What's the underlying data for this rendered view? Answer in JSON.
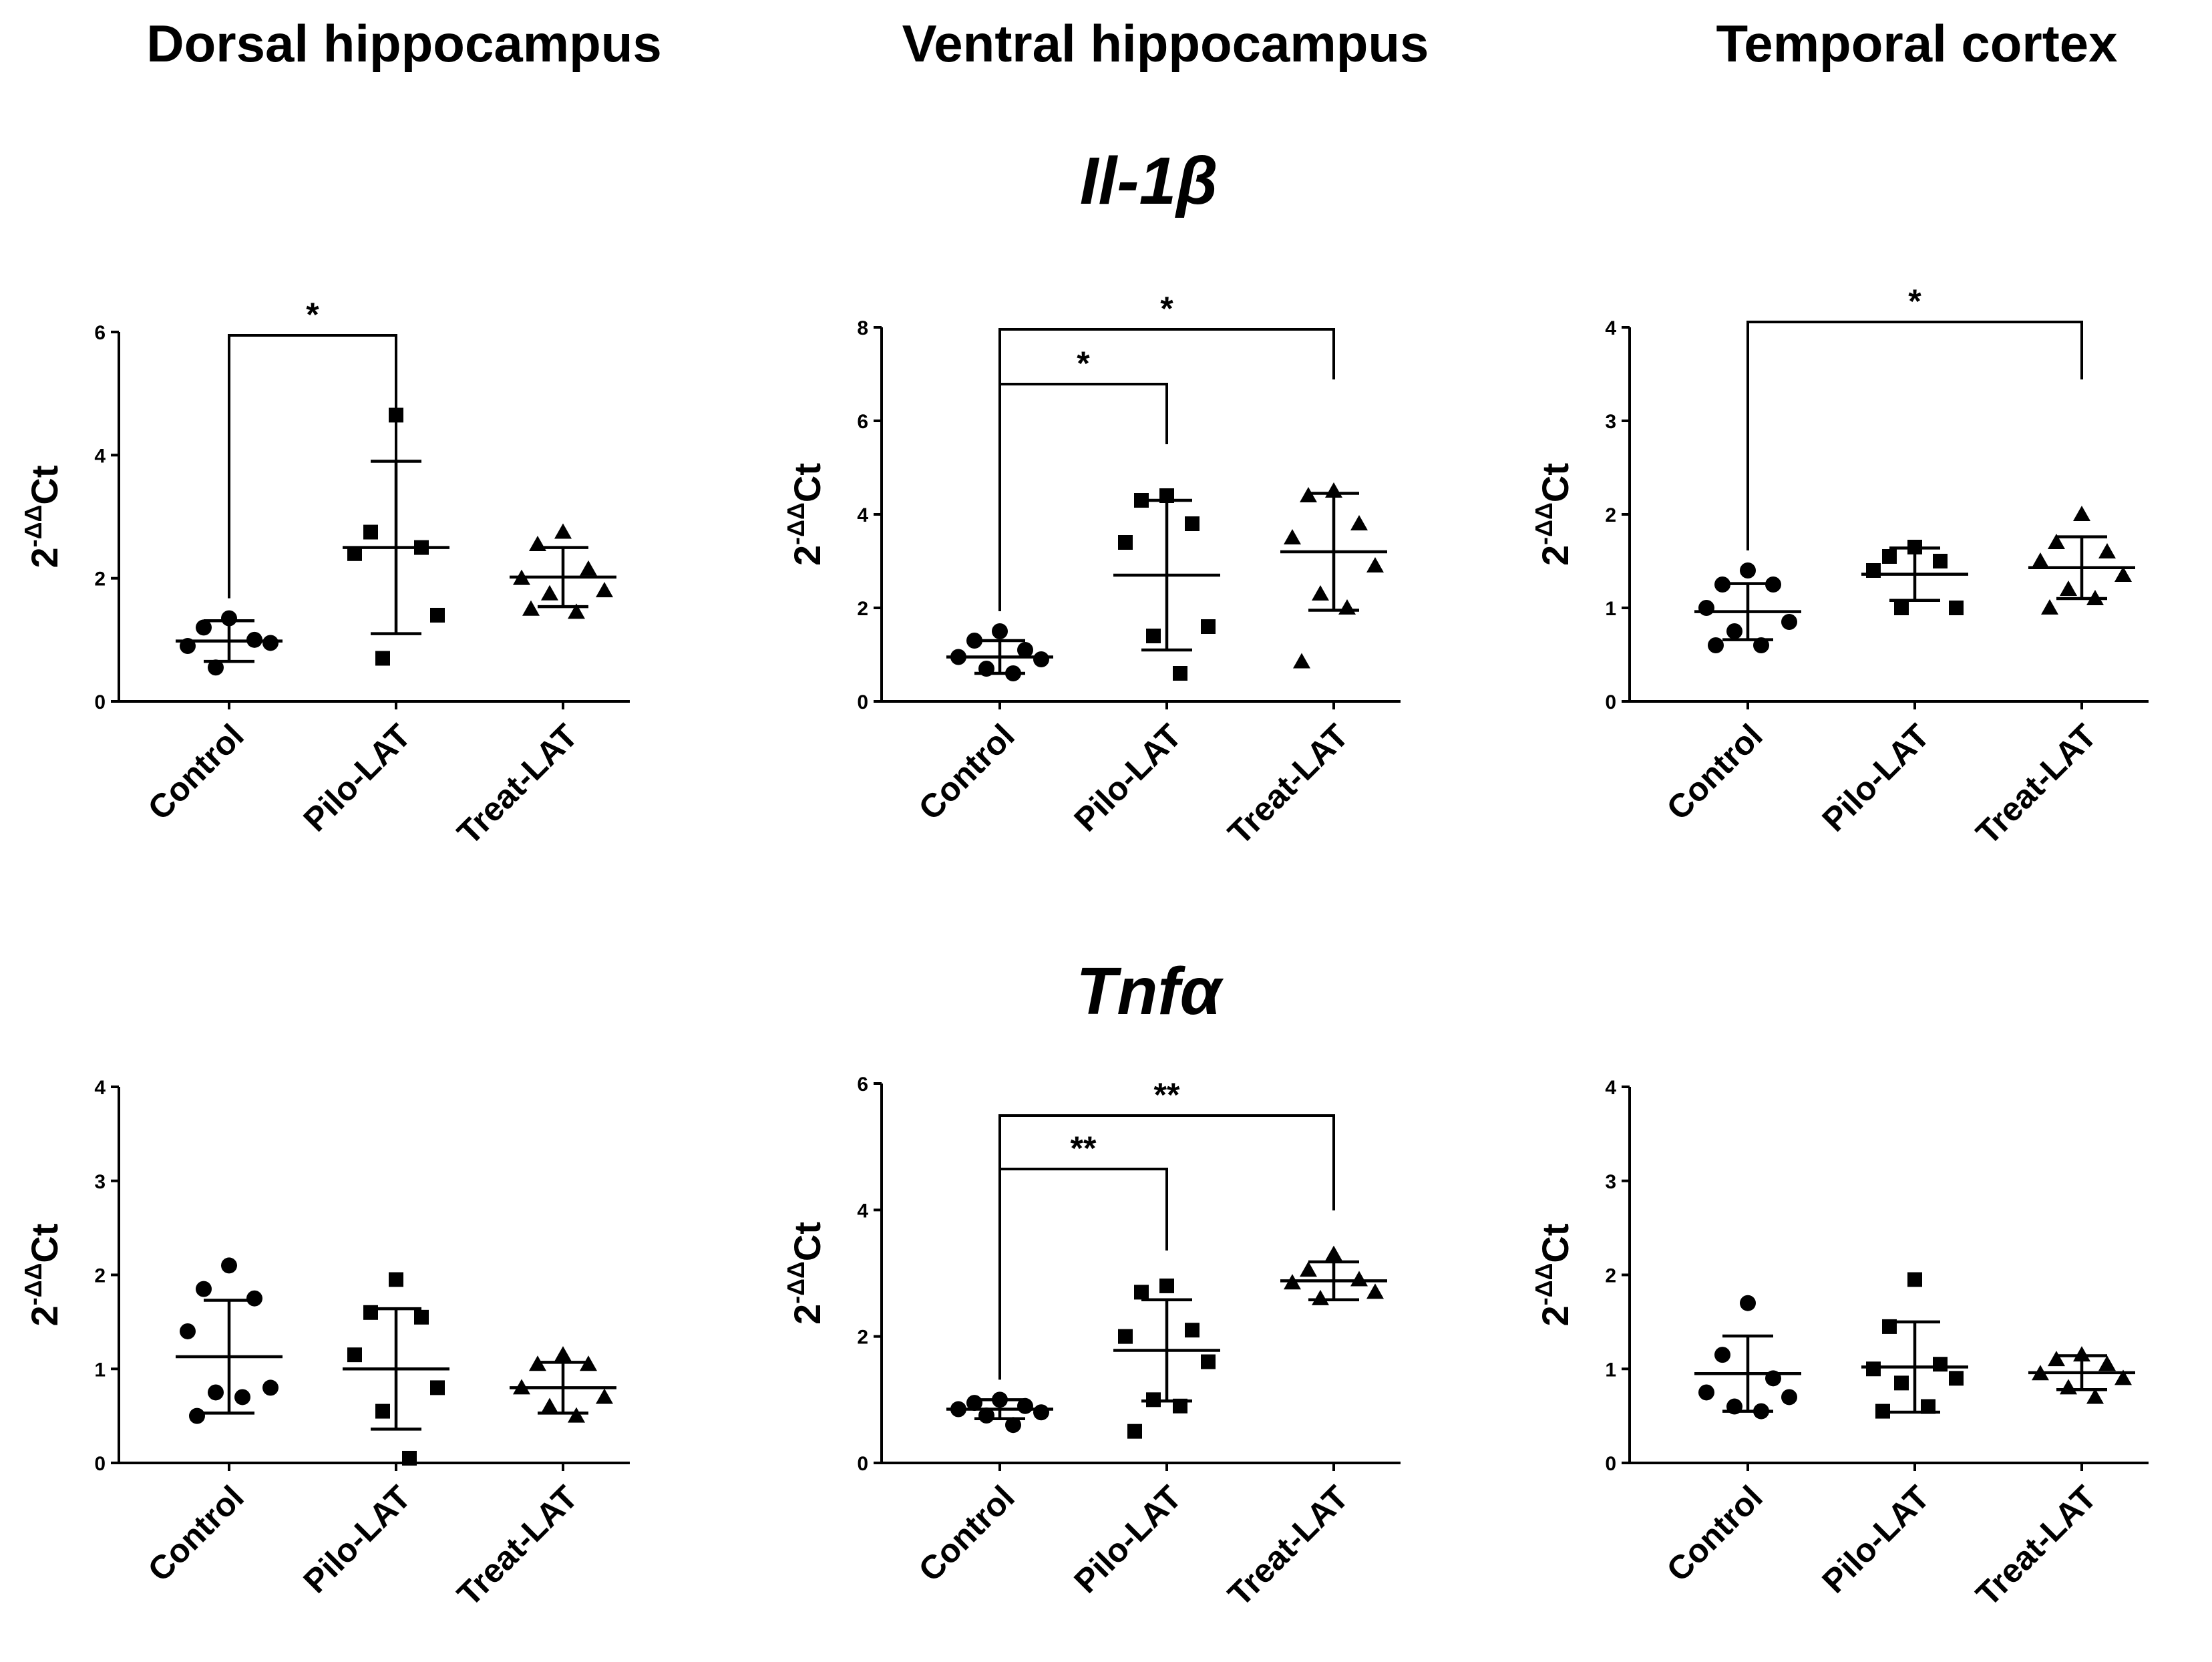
{
  "columns": [
    "Dorsal hippocampus",
    "Ventral hippocampus",
    "Temporal cortex"
  ],
  "genes": [
    {
      "title": "Il-1",
      "greek": "β"
    },
    {
      "title": "Tnf",
      "greek": "α"
    }
  ],
  "y_axis_label": {
    "base": "2",
    "exponent": "-ΔΔ",
    "suffix": "Ct"
  },
  "chart_data": [
    {
      "type": "scatter",
      "gene": "Il-1β",
      "region": "Dorsal hippocampus",
      "categories": [
        "Control",
        "Pilo-LAT",
        "Treat-LAT"
      ],
      "ylim": [
        0,
        6
      ],
      "yticks": [
        0,
        2,
        4,
        6
      ],
      "series": [
        {
          "name": "Control",
          "marker": "circle",
          "values": [
            1.35,
            1.2,
            1.0,
            0.9,
            0.95,
            0.55
          ],
          "mean": 0.98,
          "sd": 0.33
        },
        {
          "name": "Pilo-LAT",
          "marker": "square",
          "values": [
            4.65,
            2.75,
            2.5,
            2.4,
            1.4,
            0.7
          ],
          "mean": 2.5,
          "sd": 1.4
        },
        {
          "name": "Treat-LAT",
          "marker": "triangle",
          "values": [
            2.75,
            2.55,
            2.15,
            2.0,
            1.8,
            1.75,
            1.45,
            1.5
          ],
          "mean": 2.02,
          "sd": 0.48
        }
      ],
      "significance": [
        {
          "from": "Control",
          "to": "Pilo-LAT",
          "label": "*"
        }
      ]
    },
    {
      "type": "scatter",
      "gene": "Il-1β",
      "region": "Ventral hippocampus",
      "categories": [
        "Control",
        "Pilo-LAT",
        "Treat-LAT"
      ],
      "ylim": [
        0,
        8
      ],
      "yticks": [
        0,
        2,
        4,
        6,
        8
      ],
      "series": [
        {
          "name": "Control",
          "marker": "circle",
          "values": [
            1.5,
            1.3,
            1.1,
            0.95,
            0.9,
            0.7,
            0.6
          ],
          "mean": 0.95,
          "sd": 0.35
        },
        {
          "name": "Pilo-LAT",
          "marker": "square",
          "values": [
            4.4,
            4.3,
            3.8,
            3.4,
            1.6,
            1.4,
            0.6
          ],
          "mean": 2.7,
          "sd": 1.6
        },
        {
          "name": "Treat-LAT",
          "marker": "triangle",
          "values": [
            4.5,
            4.4,
            3.8,
            3.5,
            2.9,
            2.3,
            2.0,
            0.85
          ],
          "mean": 3.2,
          "sd": 1.25
        }
      ],
      "significance": [
        {
          "from": "Control",
          "to": "Pilo-LAT",
          "label": "*"
        },
        {
          "from": "Control",
          "to": "Treat-LAT",
          "label": "*"
        }
      ]
    },
    {
      "type": "scatter",
      "gene": "Il-1β",
      "region": "Temporal cortex",
      "categories": [
        "Control",
        "Pilo-LAT",
        "Treat-LAT"
      ],
      "ylim": [
        0,
        4
      ],
      "yticks": [
        0,
        1,
        2,
        3,
        4
      ],
      "series": [
        {
          "name": "Control",
          "marker": "circle",
          "values": [
            1.4,
            1.25,
            1.25,
            1.0,
            0.85,
            0.75,
            0.6,
            0.6
          ],
          "mean": 0.96,
          "sd": 0.3
        },
        {
          "name": "Pilo-LAT",
          "marker": "square",
          "values": [
            1.65,
            1.55,
            1.5,
            1.4,
            1.0,
            1.0
          ],
          "mean": 1.36,
          "sd": 0.28
        },
        {
          "name": "Treat-LAT",
          "marker": "triangle",
          "values": [
            2.0,
            1.7,
            1.6,
            1.5,
            1.35,
            1.2,
            1.1,
            1.0
          ],
          "mean": 1.43,
          "sd": 0.33
        }
      ],
      "significance": [
        {
          "from": "Control",
          "to": "Treat-LAT",
          "label": "*"
        }
      ]
    },
    {
      "type": "scatter",
      "gene": "Tnfα",
      "region": "Dorsal hippocampus",
      "categories": [
        "Control",
        "Pilo-LAT",
        "Treat-LAT"
      ],
      "ylim": [
        0,
        4
      ],
      "yticks": [
        0,
        1,
        2,
        3,
        4
      ],
      "series": [
        {
          "name": "Control",
          "marker": "circle",
          "values": [
            2.1,
            1.85,
            1.75,
            1.4,
            0.8,
            0.75,
            0.7,
            0.5
          ],
          "mean": 1.13,
          "sd": 0.6
        },
        {
          "name": "Pilo-LAT",
          "marker": "square",
          "values": [
            1.95,
            1.6,
            1.55,
            1.15,
            0.8,
            0.55,
            0.05
          ],
          "mean": 1.0,
          "sd": 0.64
        },
        {
          "name": "Treat-LAT",
          "marker": "triangle",
          "values": [
            1.15,
            1.05,
            1.05,
            0.8,
            0.7,
            0.6,
            0.5
          ],
          "mean": 0.8,
          "sd": 0.27
        }
      ],
      "significance": []
    },
    {
      "type": "scatter",
      "gene": "Tnfα",
      "region": "Ventral hippocampus",
      "categories": [
        "Control",
        "Pilo-LAT",
        "Treat-LAT"
      ],
      "ylim": [
        0,
        6
      ],
      "yticks": [
        0,
        2,
        4,
        6
      ],
      "series": [
        {
          "name": "Control",
          "marker": "circle",
          "values": [
            1.0,
            0.95,
            0.9,
            0.85,
            0.8,
            0.75,
            0.6
          ],
          "mean": 0.85,
          "sd": 0.15
        },
        {
          "name": "Pilo-LAT",
          "marker": "square",
          "values": [
            2.8,
            2.7,
            2.1,
            2.0,
            1.6,
            1.0,
            0.9,
            0.5
          ],
          "mean": 1.78,
          "sd": 0.8
        },
        {
          "name": "Treat-LAT",
          "marker": "triangle",
          "values": [
            3.3,
            3.05,
            2.9,
            2.85,
            2.7,
            2.6
          ],
          "mean": 2.88,
          "sd": 0.3
        }
      ],
      "significance": [
        {
          "from": "Control",
          "to": "Pilo-LAT",
          "label": "**"
        },
        {
          "from": "Control",
          "to": "Treat-LAT",
          "label": "**"
        }
      ]
    },
    {
      "type": "scatter",
      "gene": "Tnfα",
      "region": "Temporal cortex",
      "categories": [
        "Control",
        "Pilo-LAT",
        "Treat-LAT"
      ],
      "ylim": [
        0,
        4
      ],
      "yticks": [
        0,
        1,
        2,
        3,
        4
      ],
      "series": [
        {
          "name": "Control",
          "marker": "circle",
          "values": [
            1.7,
            1.15,
            0.9,
            0.75,
            0.7,
            0.6,
            0.55
          ],
          "mean": 0.95,
          "sd": 0.4
        },
        {
          "name": "Pilo-LAT",
          "marker": "square",
          "values": [
            1.95,
            1.45,
            1.05,
            1.0,
            0.9,
            0.85,
            0.6,
            0.55
          ],
          "mean": 1.02,
          "sd": 0.48
        },
        {
          "name": "Treat-LAT",
          "marker": "triangle",
          "values": [
            1.15,
            1.1,
            1.05,
            0.95,
            0.9,
            0.8,
            0.7
          ],
          "mean": 0.96,
          "sd": 0.18
        }
      ],
      "significance": []
    }
  ]
}
